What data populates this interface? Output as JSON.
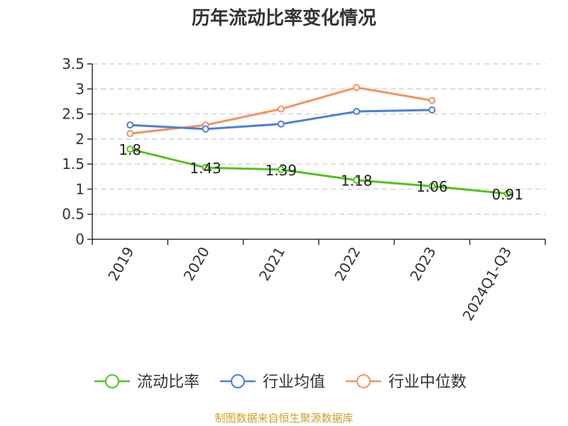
{
  "chart_data": {
    "type": "line",
    "title": "历年流动比率变化情况",
    "categories": [
      "2019",
      "2020",
      "2021",
      "2022",
      "2023",
      "2024Q1-Q3"
    ],
    "ylim": [
      0,
      3.5
    ],
    "yticks": [
      "0",
      "0.5",
      "1",
      "1.5",
      "2",
      "2.5",
      "3",
      "3.5"
    ],
    "grid": true,
    "legend_position": "bottom",
    "series": [
      {
        "name": "流动比率",
        "color": "#52c41a",
        "values": [
          1.8,
          1.43,
          1.39,
          1.18,
          1.06,
          0.91
        ],
        "labels": [
          "1.8",
          "1.43",
          "1.39",
          "1.18",
          "1.06",
          "0.91"
        ]
      },
      {
        "name": "行业均值",
        "color": "#4a7fdc",
        "values": [
          2.28,
          2.2,
          2.3,
          2.55,
          2.58,
          null
        ]
      },
      {
        "name": "行业中位数",
        "color": "#f5925e",
        "values": [
          2.11,
          2.28,
          2.6,
          3.03,
          2.77,
          null
        ]
      }
    ]
  },
  "source": "制图数据来自恒生聚源数据库"
}
